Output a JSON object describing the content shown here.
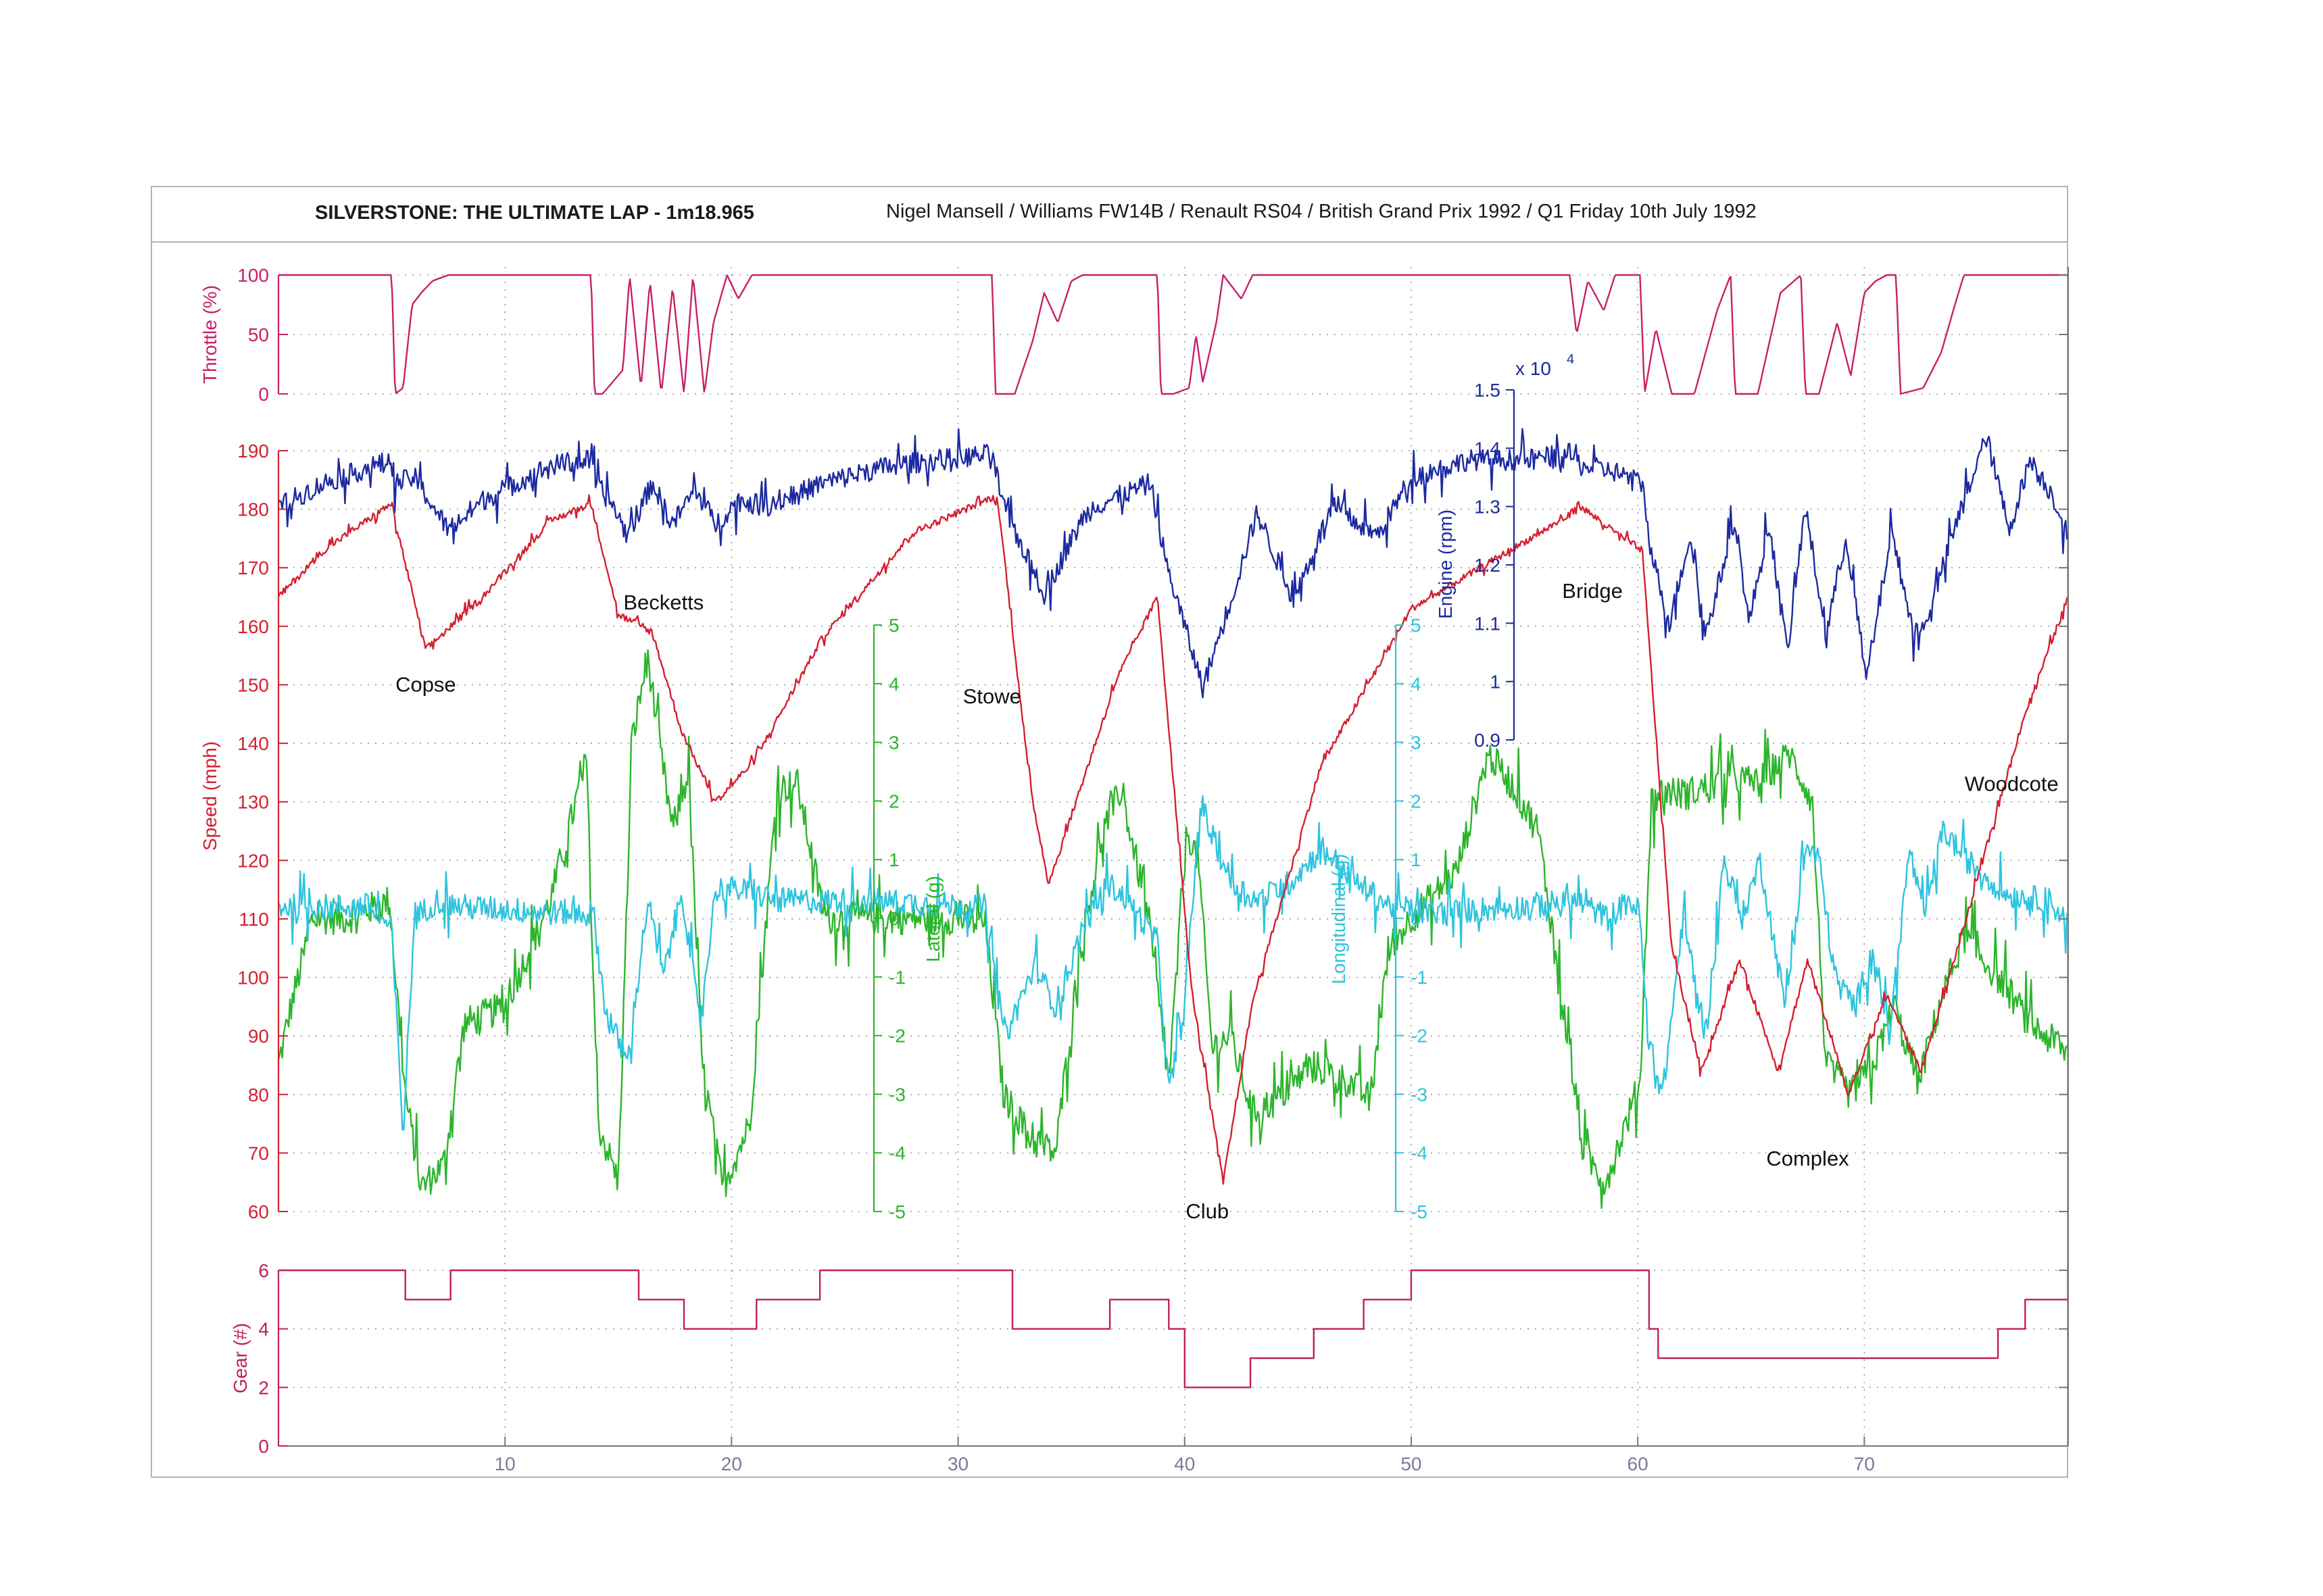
{
  "header": {
    "title": "SILVERSTONE: THE ULTIMATE LAP - 1m18.965",
    "subtitle": "Nigel Mansell / Williams FW14B / Renault RS04 / British Grand Prix 1992 / Q1 Friday 10th July 1992"
  },
  "colors": {
    "throttle": "#c8206a",
    "engine": "#1c2aa0",
    "speed": "#d42030",
    "lateral": "#2cb52c",
    "longitudinal": "#2ec4de",
    "gear": "#c2204f",
    "axis": "#7a7a9a"
  },
  "chart_data": {
    "type": "line",
    "xlabel": "",
    "xlim": [
      0,
      79
    ],
    "xticks": [
      "10",
      "20",
      "30",
      "40",
      "50",
      "60",
      "70"
    ],
    "axes": {
      "throttle": {
        "label": "Throttle (%)",
        "ylim": [
          0,
          100
        ],
        "ticks": [
          "0",
          "50",
          "100"
        ]
      },
      "speed": {
        "label": "Speed (mph)",
        "ylim": [
          60,
          190
        ],
        "ticks": [
          "60",
          "70",
          "80",
          "90",
          "100",
          "110",
          "120",
          "130",
          "140",
          "150",
          "160",
          "170",
          "180",
          "190"
        ]
      },
      "engine": {
        "label": "Engine (rpm)",
        "multiplier": "x 10",
        "exponent": "4",
        "ylim": [
          0.9,
          1.5
        ],
        "ticks": [
          "0.9",
          "1",
          "1.1",
          "1.2",
          "1.3",
          "1.4",
          "1.5"
        ]
      },
      "lateral": {
        "label": "Lateral (g)",
        "ylim": [
          -5,
          5
        ],
        "ticks": [
          "-5",
          "-4",
          "-3",
          "-2",
          "-1",
          "0",
          "1",
          "2",
          "3",
          "4",
          "5"
        ]
      },
      "longitudinal": {
        "label": "Longitudinal (g)",
        "ylim": [
          -5,
          5
        ],
        "ticks": [
          "-5",
          "-4",
          "-3",
          "-2",
          "-1",
          "0",
          "1",
          "2",
          "3",
          "4",
          "5"
        ]
      },
      "gear": {
        "label": "Gear (#)",
        "ylim": [
          0,
          6
        ],
        "ticks": [
          "0",
          "2",
          "4",
          "6"
        ]
      }
    },
    "annotations": [
      {
        "text": "Copse",
        "x": 6.5,
        "y": 150
      },
      {
        "text": "Becketts",
        "x": 17,
        "y": 164
      },
      {
        "text": "Stowe",
        "x": 31.5,
        "y": 148
      },
      {
        "text": "Club",
        "x": 41,
        "y": 60
      },
      {
        "text": "Bridge",
        "x": 58,
        "y": 166
      },
      {
        "text": "Woodcote",
        "x": 76.5,
        "y": 133
      },
      {
        "text": "Complex",
        "x": 67.5,
        "y": 69
      }
    ],
    "series": [
      {
        "name": "Throttle",
        "axis": "throttle",
        "noise": 0,
        "x": [
          0,
          5,
          5.15,
          5.5,
          5.9,
          6.3,
          6.8,
          7.5,
          13.8,
          13.95,
          14.3,
          15.2,
          15.5,
          16.0,
          16.4,
          16.9,
          17.4,
          17.9,
          18.3,
          18.8,
          19.2,
          19.8,
          20.3,
          20.9,
          21.3,
          31.5,
          31.65,
          32.5,
          33.3,
          33.8,
          34.4,
          35.0,
          35.5,
          36.5,
          38.8,
          38.95,
          39.5,
          40.2,
          40.5,
          40.8,
          41.4,
          41.7,
          42.5,
          43.0,
          43.5,
          44.5,
          57.0,
          57.3,
          57.8,
          58.5,
          59.0,
          60.1,
          60.3,
          60.8,
          61.5,
          62.5,
          63.5,
          64.1,
          64.3,
          65.3,
          66.3,
          67.2,
          67.4,
          68.0,
          68.8,
          69.4,
          70.0,
          70.5,
          71.0,
          71.4,
          71.6,
          72.6,
          73.4,
          74.0,
          74.4,
          79
        ],
        "y": [
          100,
          100,
          0,
          5,
          75,
          85,
          95,
          100,
          100,
          0,
          0,
          20,
          100,
          5,
          95,
          0,
          90,
          0,
          100,
          0,
          60,
          100,
          80,
          100,
          100,
          100,
          0,
          0,
          45,
          85,
          60,
          95,
          100,
          100,
          100,
          0,
          0,
          5,
          50,
          10,
          60,
          100,
          80,
          100,
          100,
          100,
          100,
          50,
          95,
          70,
          100,
          100,
          0,
          55,
          0,
          0,
          70,
          100,
          0,
          0,
          85,
          100,
          0,
          0,
          60,
          15,
          85,
          95,
          100,
          100,
          0,
          5,
          35,
          75,
          100,
          100
        ]
      },
      {
        "name": "Engine",
        "axis": "engine",
        "noise": 0.018,
        "x": [
          0,
          2,
          5,
          5.15,
          6,
          7.5,
          9,
          12,
          13.8,
          14,
          14.8,
          15.4,
          16.5,
          17.4,
          18.4,
          19.3,
          20.3,
          21.5,
          24,
          27,
          31.5,
          32,
          33.8,
          35.5,
          36,
          38.5,
          39.2,
          40.8,
          42.2,
          43.2,
          44.8,
          46.5,
          48.5,
          50,
          52.5,
          55,
          57.0,
          57.5,
          59,
          60.2,
          60.6,
          61.4,
          62.3,
          63.0,
          64.3,
          64.9,
          65.8,
          66.6,
          67.4,
          68.3,
          69.2,
          70.1,
          71.2,
          72.3,
          73.1,
          74.3,
          75.4,
          76.4,
          77.3,
          78.3,
          79
        ],
        "y": [
          1.3,
          1.34,
          1.38,
          1.34,
          1.35,
          1.26,
          1.31,
          1.37,
          1.38,
          1.34,
          1.3,
          1.25,
          1.34,
          1.27,
          1.33,
          1.27,
          1.31,
          1.3,
          1.34,
          1.37,
          1.39,
          1.3,
          1.15,
          1.28,
          1.3,
          1.34,
          1.2,
          0.99,
          1.16,
          1.29,
          1.14,
          1.3,
          1.25,
          1.35,
          1.38,
          1.38,
          1.39,
          1.37,
          1.36,
          1.34,
          1.22,
          1.1,
          1.25,
          1.08,
          1.28,
          1.1,
          1.27,
          1.05,
          1.3,
          1.08,
          1.25,
          1.0,
          1.26,
          1.06,
          1.15,
          1.3,
          1.42,
          1.26,
          1.38,
          1.32,
          1.25
        ]
      },
      {
        "name": "Speed",
        "axis": "speed",
        "noise": 0.6,
        "x": [
          0,
          2,
          5,
          5.15,
          6.5,
          9,
          12,
          13.8,
          15,
          16.5,
          17.8,
          19.3,
          21,
          24,
          28,
          31.5,
          31.8,
          33.2,
          34,
          37,
          38.8,
          40.3,
          41.7,
          43,
          46,
          50,
          57,
          57.3,
          59,
          60.2,
          61.5,
          62.8,
          64.5,
          66.2,
          67.5,
          69.3,
          71,
          72.5,
          74.5,
          77,
          79
        ],
        "y": [
          165,
          173,
          181,
          178,
          156,
          165,
          178,
          181,
          162,
          159,
          142,
          130,
          137,
          158,
          176,
          182,
          180,
          132,
          116,
          151,
          165,
          98,
          65,
          96,
          136,
          163,
          179,
          181,
          176,
          173,
          105,
          84,
          103,
          84,
          103,
          80,
          97,
          84,
          110,
          144,
          165
        ]
      },
      {
        "name": "Lateral",
        "axis": "lateral",
        "noise": 0.28,
        "x": [
          0,
          0.5,
          1.5,
          3,
          4.9,
          5.6,
          6.3,
          7.3,
          8.2,
          10,
          12,
          13.6,
          14.1,
          15.0,
          15.6,
          16.3,
          16.8,
          17.4,
          18.1,
          18.7,
          19.6,
          20.8,
          22.0,
          22.9,
          24.1,
          26,
          30,
          31.2,
          32.0,
          33.3,
          34.3,
          35.4,
          36.4,
          37.2,
          38.4,
          39.3,
          40.1,
          40.6,
          41.2,
          42.0,
          43.0,
          44.1,
          45.6,
          47.3,
          48.2,
          49.0,
          50.0,
          52.0,
          53.4,
          54.4,
          55.6,
          56.6,
          57.6,
          58.6,
          60.1,
          60.6,
          61.2,
          62.0,
          63.5,
          64.2,
          65.3,
          66.7,
          67.7,
          68.3,
          69.4,
          70.4,
          71.3,
          72.4,
          73.3,
          74.4,
          76.3,
          77.3,
          79
        ],
        "y": [
          -2.5,
          -1.6,
          0,
          0,
          0.3,
          -3.0,
          -4.6,
          -4.2,
          -1.8,
          -1.5,
          0.3,
          2.7,
          -3.5,
          -4.5,
          3.0,
          4.5,
          3.0,
          1.5,
          2.5,
          -2.5,
          -4.6,
          -3.5,
          2.2,
          2.3,
          0,
          0,
          0,
          -0.1,
          -3.0,
          -3.8,
          -4.0,
          -0.5,
          1.5,
          2.2,
          0,
          -2.8,
          1.5,
          1.0,
          -2.2,
          -2.0,
          -3.3,
          -3.1,
          -2.5,
          -2.8,
          -3.1,
          -0.5,
          0,
          0.8,
          2.8,
          2.3,
          1.5,
          -1.2,
          -4.0,
          -4.5,
          -2.8,
          2.0,
          2.2,
          2.1,
          2.3,
          2.4,
          2.3,
          2.8,
          2.0,
          -2.5,
          -3.0,
          -2.5,
          -1.5,
          -2.8,
          -1.5,
          -0.3,
          -1.2,
          -1.8,
          -2.3
        ]
      },
      {
        "name": "Longitudinal",
        "axis": "longitudinal",
        "noise": 0.22,
        "x": [
          0,
          4,
          5,
          5.5,
          6,
          7,
          8,
          12,
          13.9,
          14.4,
          15.4,
          16.3,
          17.0,
          17.8,
          18.6,
          19.3,
          20.2,
          22,
          26,
          31.2,
          31.7,
          32.1,
          33.4,
          34.3,
          35.6,
          36.6,
          37.5,
          38.8,
          39.3,
          40.0,
          40.7,
          41.3,
          42.1,
          43.2,
          44.6,
          46.1,
          47.6,
          49.1,
          51,
          55,
          57.3,
          58.7,
          59.6,
          60.1,
          60.4,
          61.1,
          62.0,
          63.0,
          63.8,
          64.6,
          65.4,
          66.5,
          67.4,
          68.0,
          68.7,
          69.6,
          70.4,
          71.1,
          72.0,
          72.6,
          73.5,
          74.5,
          76.3,
          78.2,
          79
        ],
        "y": [
          0.2,
          0.2,
          -0.2,
          -3.7,
          0,
          0.3,
          0.2,
          0.1,
          0.1,
          -1.5,
          -2.5,
          0.3,
          -1.0,
          0.5,
          -1.8,
          0.5,
          0.5,
          0.3,
          0.3,
          0.2,
          -1.2,
          -2.0,
          -0.8,
          -1.5,
          -0.1,
          0.6,
          0.3,
          -0.4,
          -3.0,
          -1.5,
          2.0,
          1.3,
          0.6,
          0.3,
          0.6,
          1.2,
          0.6,
          0.2,
          0.1,
          0.2,
          0.3,
          0.0,
          0.3,
          0.1,
          -2.0,
          -3.0,
          0,
          -2.0,
          1.0,
          0.0,
          1.0,
          -1.5,
          1.2,
          1.0,
          -1.0,
          -1.5,
          -0.5,
          -2.0,
          1.2,
          0.0,
          1.5,
          1.0,
          0.4,
          0.3,
          -0.1
        ]
      },
      {
        "name": "Gear",
        "axis": "gear",
        "noise": 0,
        "step": true,
        "x": [
          0,
          5.6,
          7.6,
          15.9,
          17.9,
          21.1,
          23.9,
          32.4,
          36.7,
          39.3,
          40.0,
          42.9,
          45.7,
          47.9,
          50.0,
          60.5,
          60.9,
          75.9,
          77.1,
          79
        ],
        "y": [
          6,
          5,
          6,
          5,
          4,
          5,
          6,
          4,
          5,
          4,
          2,
          3,
          4,
          5,
          6,
          4,
          3,
          4,
          5,
          6
        ]
      }
    ]
  }
}
